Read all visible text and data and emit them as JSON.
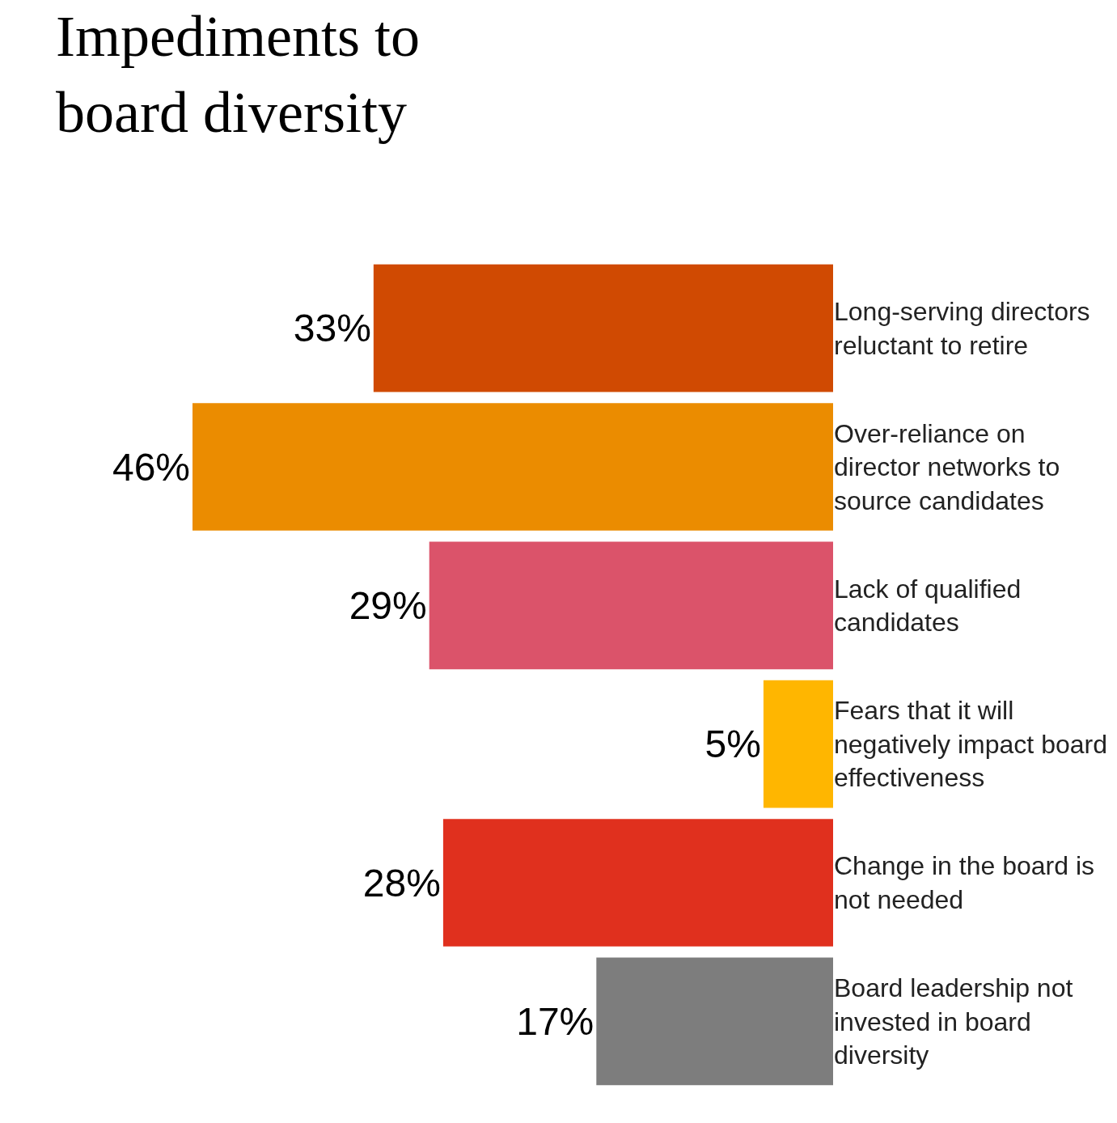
{
  "chart_data": {
    "type": "bar",
    "orientation": "horizontal",
    "title": "Impediments to board diversity",
    "categories": [
      "Long-serving directors reluctant to retire",
      "Over-reliance on director networks to source candidates",
      "Lack of qualified candidates",
      "Fears that it will negatively impact board effectiveness",
      "Change in the board is not needed",
      "Board leadership not invested in board diversity"
    ],
    "values": [
      33,
      46,
      29,
      5,
      28,
      17
    ],
    "value_labels": [
      "33%",
      "46%",
      "29%",
      "5%",
      "28%",
      "17%"
    ],
    "colors": [
      "#d04a02",
      "#eb8c00",
      "#db536a",
      "#ffb600",
      "#e0301e",
      "#7d7d7d"
    ],
    "grid": false
  }
}
